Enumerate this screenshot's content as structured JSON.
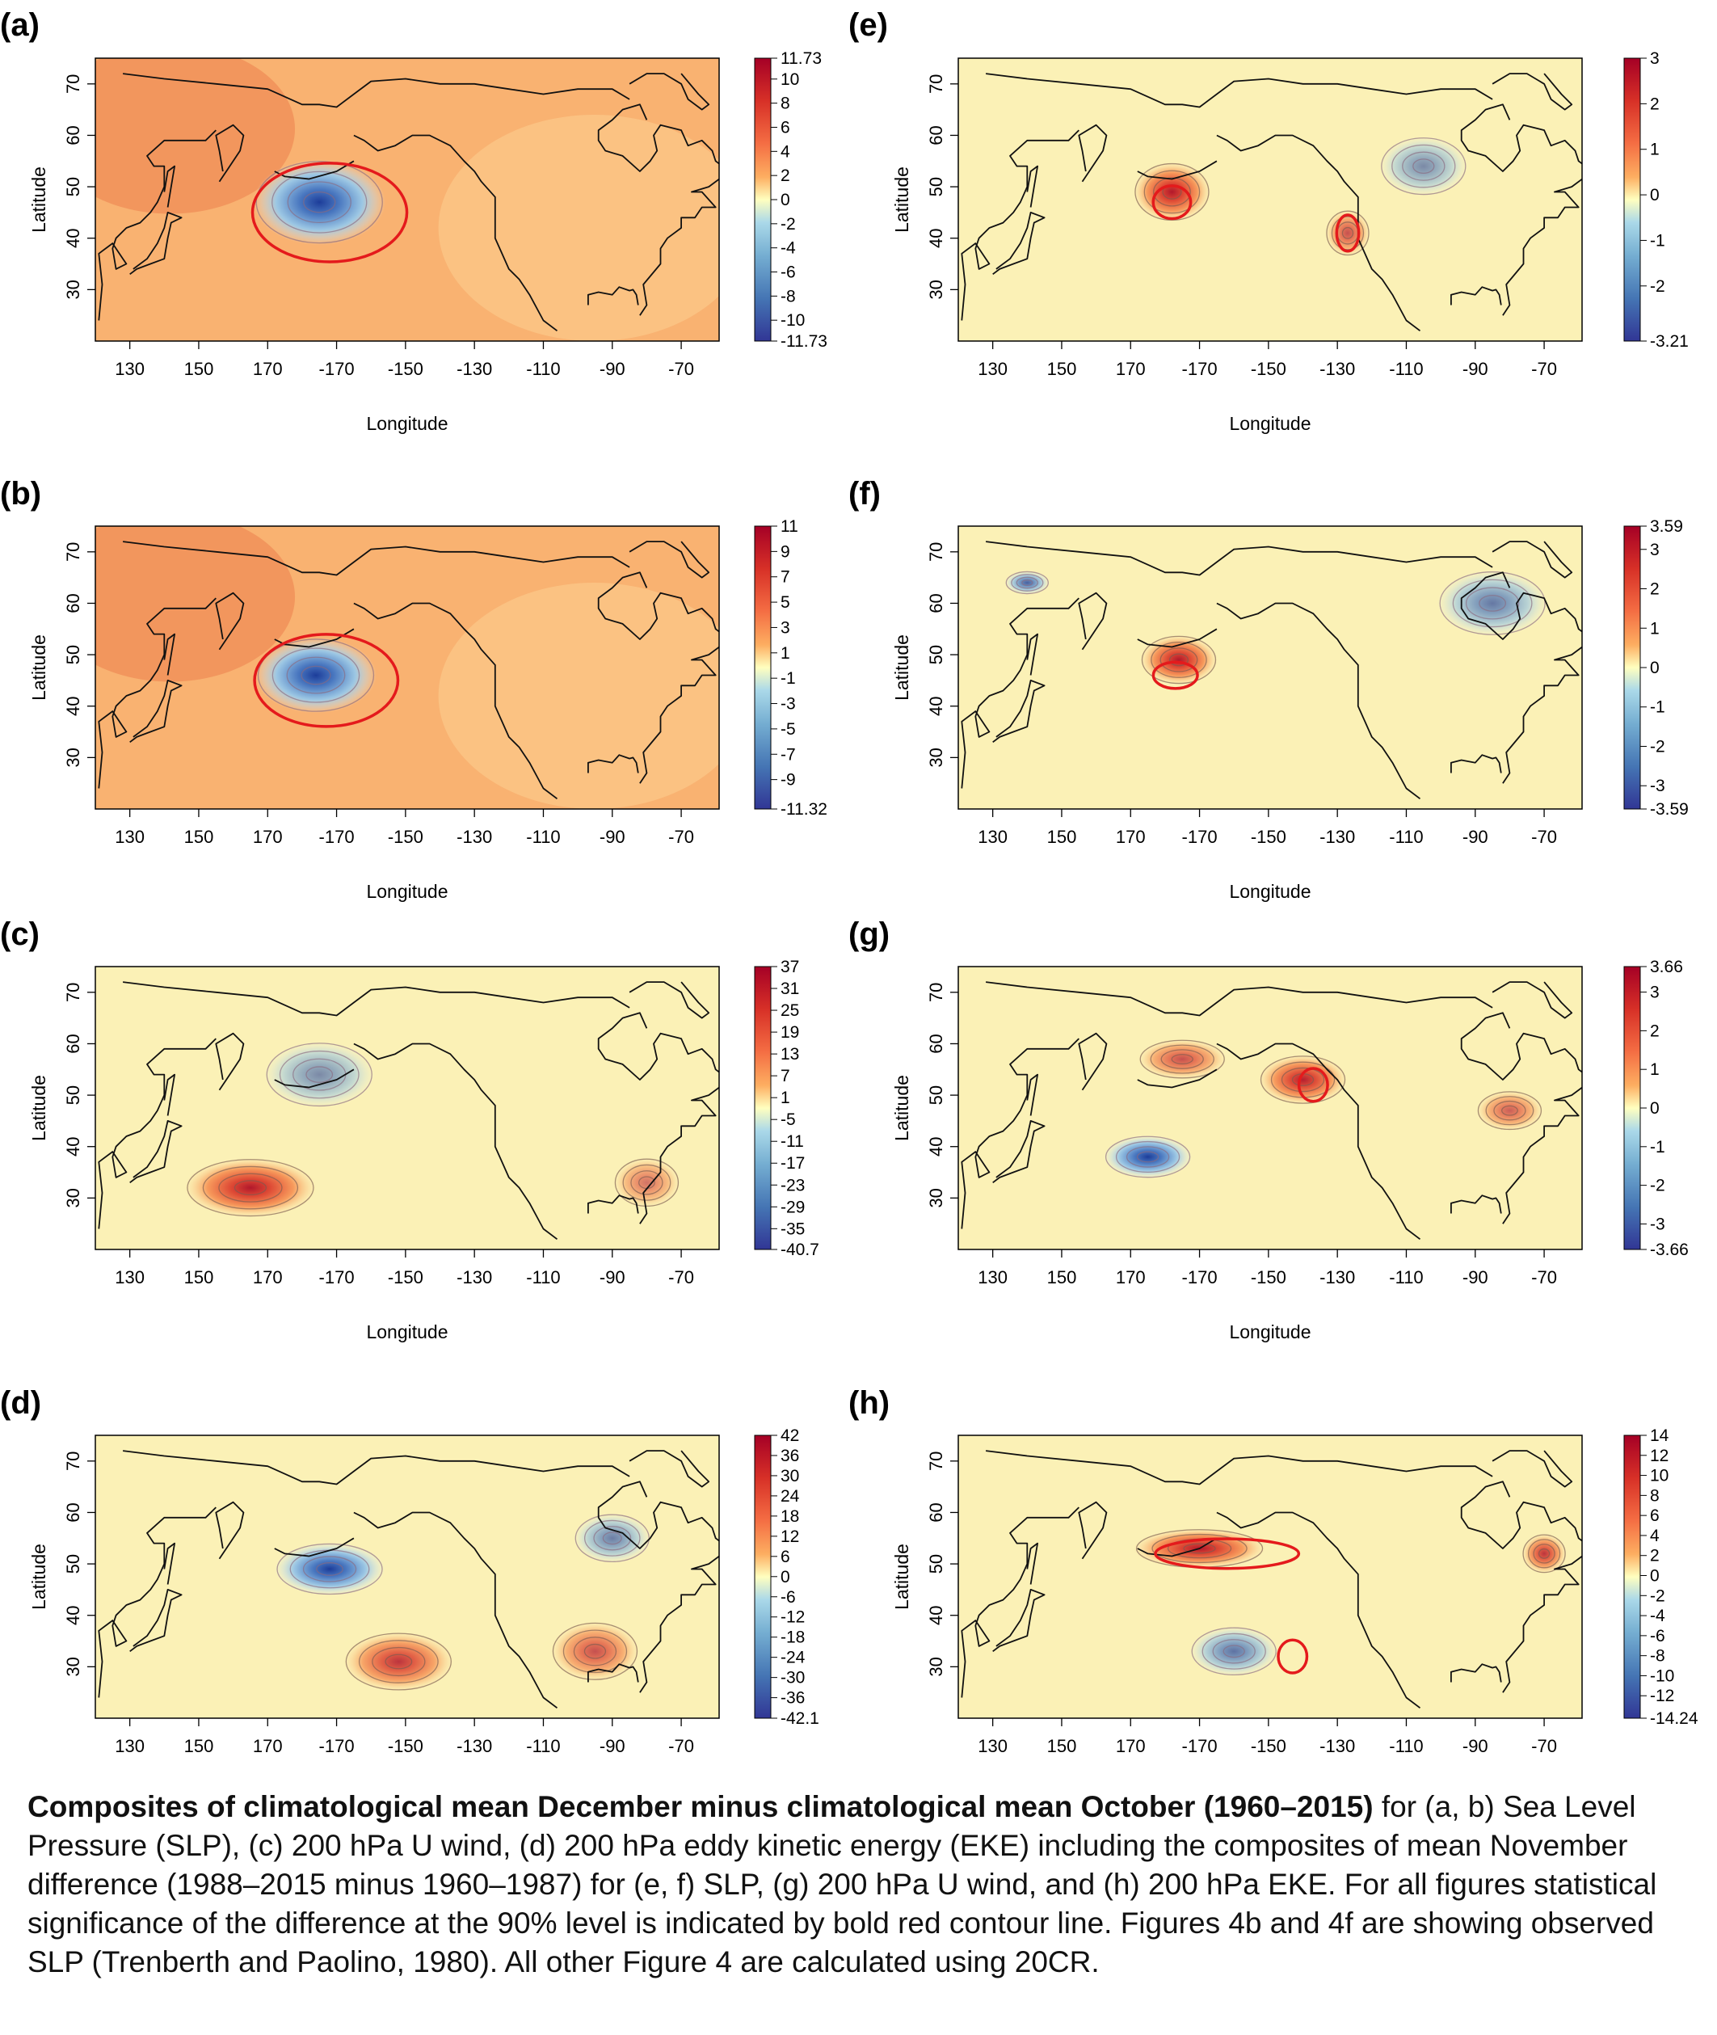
{
  "chart_data": [
    {
      "id": "a",
      "type": "heatmap",
      "panel_label": "(a)",
      "xlabel": "Longitude",
      "ylabel": "Latitude",
      "x_ticks": [
        "130",
        "150",
        "170",
        "-170",
        "-150",
        "-130",
        "-110",
        "-90",
        "-70"
      ],
      "y_ticks": [
        "30",
        "40",
        "50",
        "60",
        "70"
      ],
      "colorbar_labels": [
        "11.73",
        "10",
        "8",
        "6",
        "4",
        "2",
        "0",
        "-2",
        "-4",
        "-6",
        "-8",
        "-10",
        "-11.73"
      ],
      "colorbar_range": [
        -11.73,
        11.73
      ],
      "background": "warm",
      "features": [
        {
          "kind": "low",
          "lon": -175,
          "lat": 47,
          "rx": 6,
          "ry": 2.6,
          "strength": 1.0
        }
      ],
      "significance_contours": [
        {
          "lon": -172,
          "lat": 45,
          "rx": 7,
          "ry": 3.0
        }
      ]
    },
    {
      "id": "b",
      "type": "heatmap",
      "panel_label": "(b)",
      "xlabel": "Longitude",
      "ylabel": "Latitude",
      "x_ticks": [
        "130",
        "150",
        "170",
        "-170",
        "-150",
        "-130",
        "-110",
        "-90",
        "-70"
      ],
      "y_ticks": [
        "30",
        "40",
        "50",
        "60",
        "70"
      ],
      "colorbar_labels": [
        "11",
        "9",
        "7",
        "5",
        "3",
        "1",
        "-1",
        "-3",
        "-5",
        "-7",
        "-9",
        "-11.32"
      ],
      "colorbar_range": [
        -11.32,
        11
      ],
      "background": "warm",
      "features": [
        {
          "kind": "low",
          "lon": -176,
          "lat": 46,
          "rx": 5.5,
          "ry": 2.3,
          "strength": 1.0
        }
      ],
      "significance_contours": [
        {
          "lon": -173,
          "lat": 45,
          "rx": 6.5,
          "ry": 2.8
        }
      ]
    },
    {
      "id": "c",
      "type": "heatmap",
      "panel_label": "(c)",
      "xlabel": "Longitude",
      "ylabel": "Latitude",
      "x_ticks": [
        "130",
        "150",
        "170",
        "-170",
        "-150",
        "-130",
        "-110",
        "-90",
        "-70"
      ],
      "y_ticks": [
        "30",
        "40",
        "50",
        "60",
        "70"
      ],
      "colorbar_labels": [
        "37",
        "31",
        "25",
        "19",
        "13",
        "7",
        "1",
        "-5",
        "-11",
        "-17",
        "-23",
        "-29",
        "-35",
        "-40.7"
      ],
      "colorbar_range": [
        -40.7,
        37
      ],
      "background": "neutral",
      "features": [
        {
          "kind": "high",
          "lon": 165,
          "lat": 32,
          "rx": 6,
          "ry": 1.8,
          "strength": 1.0
        },
        {
          "kind": "low",
          "lon": -175,
          "lat": 54,
          "rx": 5,
          "ry": 2,
          "strength": 0.35
        },
        {
          "kind": "high",
          "lon": -80,
          "lat": 33,
          "rx": 3,
          "ry": 1.5,
          "strength": 0.35
        }
      ],
      "significance_contours": []
    },
    {
      "id": "d",
      "type": "heatmap",
      "panel_label": "(d)",
      "xlabel": "Longitude",
      "ylabel": "Latitude",
      "x_ticks": [
        "130",
        "150",
        "170",
        "-170",
        "-150",
        "-130",
        "-110",
        "-90",
        "-70"
      ],
      "y_ticks": [
        "30",
        "40",
        "50",
        "60",
        "70"
      ],
      "colorbar_labels": [
        "42",
        "36",
        "30",
        "24",
        "18",
        "12",
        "6",
        "0",
        "-6",
        "-12",
        "-18",
        "-24",
        "-30",
        "-36",
        "-42.1"
      ],
      "colorbar_range": [
        -42.1,
        42
      ],
      "background": "neutral",
      "features": [
        {
          "kind": "low",
          "lon": -172,
          "lat": 49,
          "rx": 5,
          "ry": 1.6,
          "strength": 1.0
        },
        {
          "kind": "high",
          "lon": -152,
          "lat": 31,
          "rx": 5,
          "ry": 1.8,
          "strength": 0.8
        },
        {
          "kind": "high",
          "lon": -95,
          "lat": 33,
          "rx": 4,
          "ry": 1.8,
          "strength": 0.6
        },
        {
          "kind": "low",
          "lon": -90,
          "lat": 55,
          "rx": 3.5,
          "ry": 1.5,
          "strength": 0.45
        }
      ],
      "significance_contours": []
    },
    {
      "id": "e",
      "type": "heatmap",
      "panel_label": "(e)",
      "xlabel": "Longitude",
      "ylabel": "Latitude",
      "x_ticks": [
        "130",
        "150",
        "170",
        "-170",
        "-150",
        "-130",
        "-110",
        "-90",
        "-70"
      ],
      "y_ticks": [
        "30",
        "40",
        "50",
        "60",
        "70"
      ],
      "colorbar_labels": [
        "3",
        "2",
        "1",
        "0",
        "-1",
        "-2",
        "-3.21"
      ],
      "colorbar_range": [
        -3.21,
        3
      ],
      "background": "neutral",
      "features": [
        {
          "kind": "high",
          "lon": -178,
          "lat": 49,
          "rx": 3.5,
          "ry": 1.8,
          "strength": 1.0
        },
        {
          "kind": "high",
          "lon": -127,
          "lat": 41,
          "rx": 2,
          "ry": 1.4,
          "strength": 0.6
        },
        {
          "kind": "low",
          "lon": -105,
          "lat": 54,
          "rx": 4,
          "ry": 1.8,
          "strength": 0.35
        }
      ],
      "significance_contours": [
        {
          "lon": -178,
          "lat": 47,
          "rx": 1.7,
          "ry": 1.0
        },
        {
          "lon": -127,
          "lat": 41,
          "rx": 1.0,
          "ry": 1.1
        }
      ]
    },
    {
      "id": "f",
      "type": "heatmap",
      "panel_label": "(f)",
      "xlabel": "Longitude",
      "ylabel": "Latitude",
      "x_ticks": [
        "130",
        "150",
        "170",
        "-170",
        "-150",
        "-130",
        "-110",
        "-90",
        "-70"
      ],
      "y_ticks": [
        "30",
        "40",
        "50",
        "60",
        "70"
      ],
      "colorbar_labels": [
        "3.59",
        "3",
        "2",
        "1",
        "0",
        "-1",
        "-2",
        "-3",
        "-3.59"
      ],
      "colorbar_range": [
        -3.59,
        3.59
      ],
      "background": "neutral",
      "features": [
        {
          "kind": "high",
          "lon": -176,
          "lat": 49,
          "rx": 3.5,
          "ry": 1.5,
          "strength": 1.0
        },
        {
          "kind": "low",
          "lon": -85,
          "lat": 60,
          "rx": 5,
          "ry": 2,
          "strength": 0.5
        },
        {
          "kind": "low",
          "lon": 140,
          "lat": 64,
          "rx": 2,
          "ry": 0.7,
          "strength": 0.7
        }
      ],
      "significance_contours": [
        {
          "lon": -177,
          "lat": 46,
          "rx": 2.0,
          "ry": 0.8
        }
      ]
    },
    {
      "id": "g",
      "type": "heatmap",
      "panel_label": "(g)",
      "xlabel": "Longitude",
      "ylabel": "Latitude",
      "x_ticks": [
        "130",
        "150",
        "170",
        "-170",
        "-150",
        "-130",
        "-110",
        "-90",
        "-70"
      ],
      "y_ticks": [
        "30",
        "40",
        "50",
        "60",
        "70"
      ],
      "colorbar_labels": [
        "3.66",
        "3",
        "2",
        "1",
        "0",
        "-1",
        "-2",
        "-3",
        "-3.66"
      ],
      "colorbar_range": [
        -3.66,
        3.66
      ],
      "background": "neutral",
      "features": [
        {
          "kind": "low",
          "lon": 175,
          "lat": 38,
          "rx": 4,
          "ry": 1.3,
          "strength": 1.0
        },
        {
          "kind": "high",
          "lon": -140,
          "lat": 53,
          "rx": 4,
          "ry": 1.5,
          "strength": 0.95
        },
        {
          "kind": "high",
          "lon": -175,
          "lat": 57,
          "rx": 4,
          "ry": 1.2,
          "strength": 0.6
        },
        {
          "kind": "high",
          "lon": -80,
          "lat": 47,
          "rx": 3,
          "ry": 1.2,
          "strength": 0.5
        }
      ],
      "significance_contours": [
        {
          "lon": -137,
          "lat": 52,
          "rx": 1.3,
          "ry": 1.0
        }
      ]
    },
    {
      "id": "h",
      "type": "heatmap",
      "panel_label": "(h)",
      "xlabel": "Longitude",
      "ylabel": "Latitude",
      "x_ticks": [
        "130",
        "150",
        "170",
        "-170",
        "-150",
        "-130",
        "-110",
        "-90",
        "-70"
      ],
      "y_ticks": [
        "30",
        "40",
        "50",
        "60",
        "70"
      ],
      "colorbar_labels": [
        "14",
        "12",
        "10",
        "8",
        "6",
        "4",
        "2",
        "0",
        "-2",
        "-4",
        "-6",
        "-8",
        "-10",
        "-12",
        "-14.24"
      ],
      "colorbar_range": [
        -14.24,
        14
      ],
      "background": "neutral",
      "features": [
        {
          "kind": "high",
          "lon": -170,
          "lat": 53,
          "rx": 6,
          "ry": 1.2,
          "strength": 1.0
        },
        {
          "kind": "high",
          "lon": -70,
          "lat": 52,
          "rx": 2,
          "ry": 1.2,
          "strength": 0.8
        },
        {
          "kind": "low",
          "lon": -160,
          "lat": 33,
          "rx": 4,
          "ry": 1.5,
          "strength": 0.55
        }
      ],
      "significance_contours": [
        {
          "lon": -162,
          "lat": 52,
          "rx": 6.5,
          "ry": 0.9
        },
        {
          "lon": -143,
          "lat": 32,
          "rx": 1.3,
          "ry": 1.0
        }
      ]
    }
  ],
  "caption": {
    "bold": "Composites of climatological mean December minus climatological mean October (1960–2015)",
    "rest": " for (a, b) Sea Level Pressure (SLP), (c) 200 hPa U wind, (d) 200 hPa eddy kinetic energy (EKE) including the composites of mean November difference (1988–2015 minus 1960–1987) for (e, f) SLP, (g) 200 hPa U wind, and (h) 200 hPa EKE. For all figures statistical significance of the difference at the 90% level is indicated by bold red contour line. Figures 4b and 4f are showing observed SLP (Trenberth and Paolino, 1980). All other Figure 4 are calculated using 20CR."
  }
}
